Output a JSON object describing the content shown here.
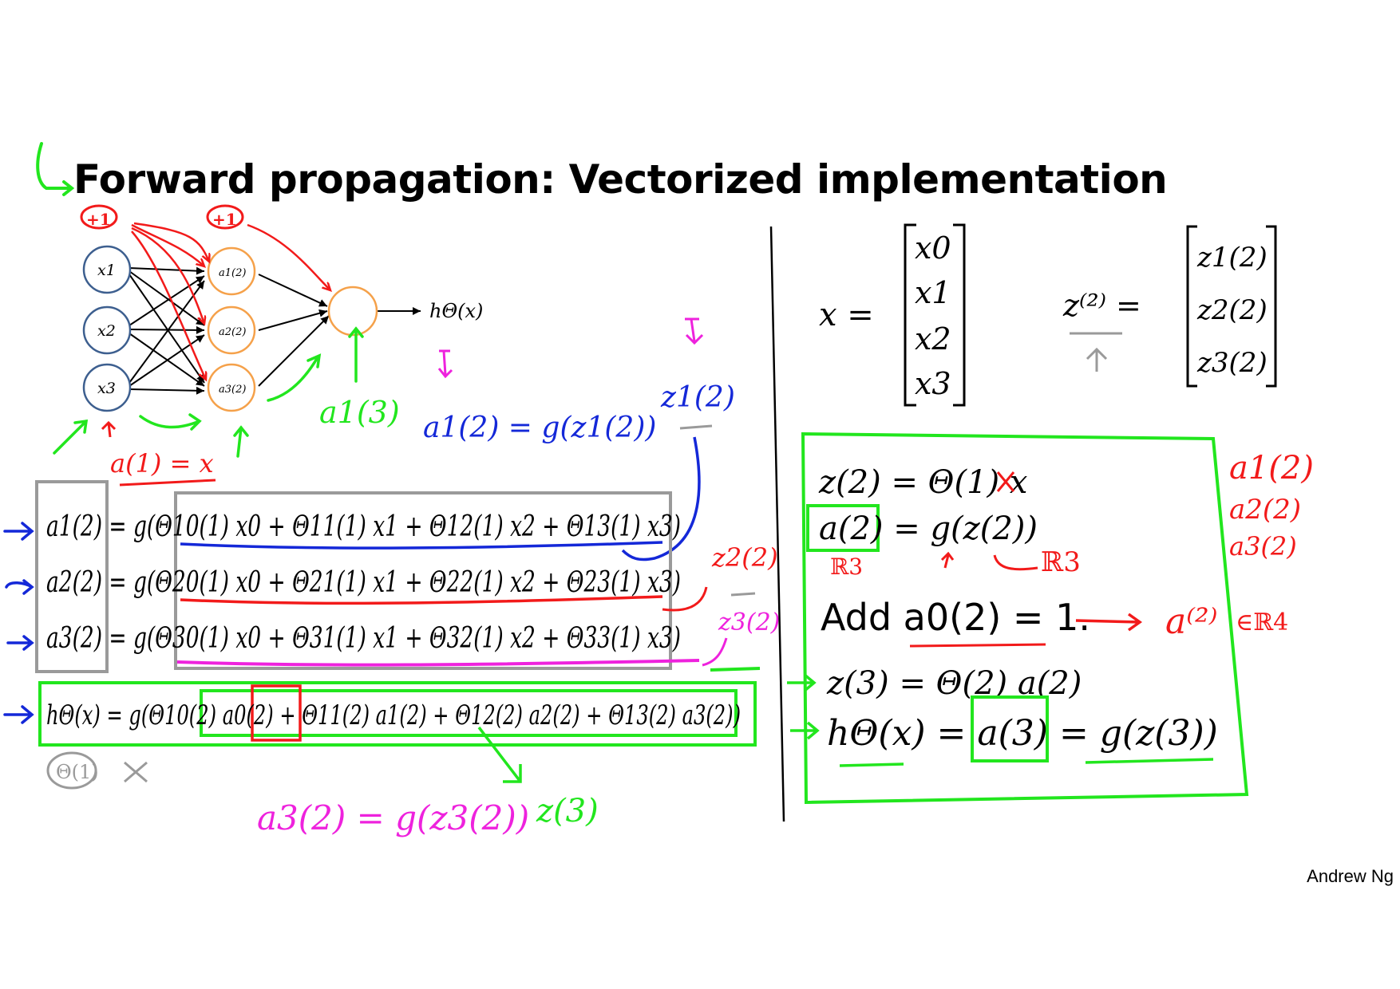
{
  "slide": {
    "title": "Forward propagation: Vectorized implementation",
    "author": "Andrew Ng"
  },
  "network": {
    "bias_label": "+1",
    "inputs": [
      "x1",
      "x2",
      "x3"
    ],
    "hidden": [
      "a1(2)",
      "a2(2)",
      "a3(2)"
    ],
    "output_label": "hΘ(x)"
  },
  "equations_left": [
    "a1(2) = g(Θ10(1) x0 + Θ11(1) x1 + Θ12(1) x2 + Θ13(1) x3)",
    "a2(2) = g(Θ20(1) x0 + Θ21(1) x1 + Θ22(1) x2 + Θ23(1) x3)",
    "a3(2) = g(Θ30(1) x0 + Θ31(1) x1 + Θ32(1) x2 + Θ33(1) x3)",
    "hΘ(x) = g(Θ10(2) a0(2) + Θ11(2) a1(2) + Θ12(2) a2(2) + Θ13(2) a3(2))"
  ],
  "vectors": {
    "x_vector": [
      "x0",
      "x1",
      "x2",
      "x3"
    ],
    "z2_vector": [
      "z1(2)",
      "z2(2)",
      "z3(2)"
    ]
  },
  "equations_right": [
    "z(2) = Θ(1) x",
    "a(2) = g(z(2))",
    "Add a0(2) = 1.",
    "z(3) = Θ(2) a(2)",
    "hΘ(x) = a(3) = g(z(3))"
  ],
  "annotations": {
    "a1_eq_x": "a(1) = x",
    "a1_2_eq": "a1(2) = g(z1(2))",
    "a3_2_eq": "a3(2) = g(z3(2))",
    "z1_2": "z1(2)",
    "z2_2": "z2(2)",
    "z3_2": "z3(2)",
    "a1_3": "a1(3)",
    "z3_label": "z(3)",
    "theta1": "Θ(1)",
    "r3": "ℝ3",
    "r4": "∈ℝ4",
    "a_list": [
      "a1(2)",
      "a2(2)",
      "a3(2)"
    ]
  },
  "colors": {
    "ink": "#000000",
    "green": "#22e61e",
    "red": "#f21a1a",
    "blue": "#1428d8",
    "magenta": "#ee22dd",
    "gray": "#9a9a9a",
    "node_blue": "#3d5f8f",
    "node_orange": "#f5a14a"
  }
}
